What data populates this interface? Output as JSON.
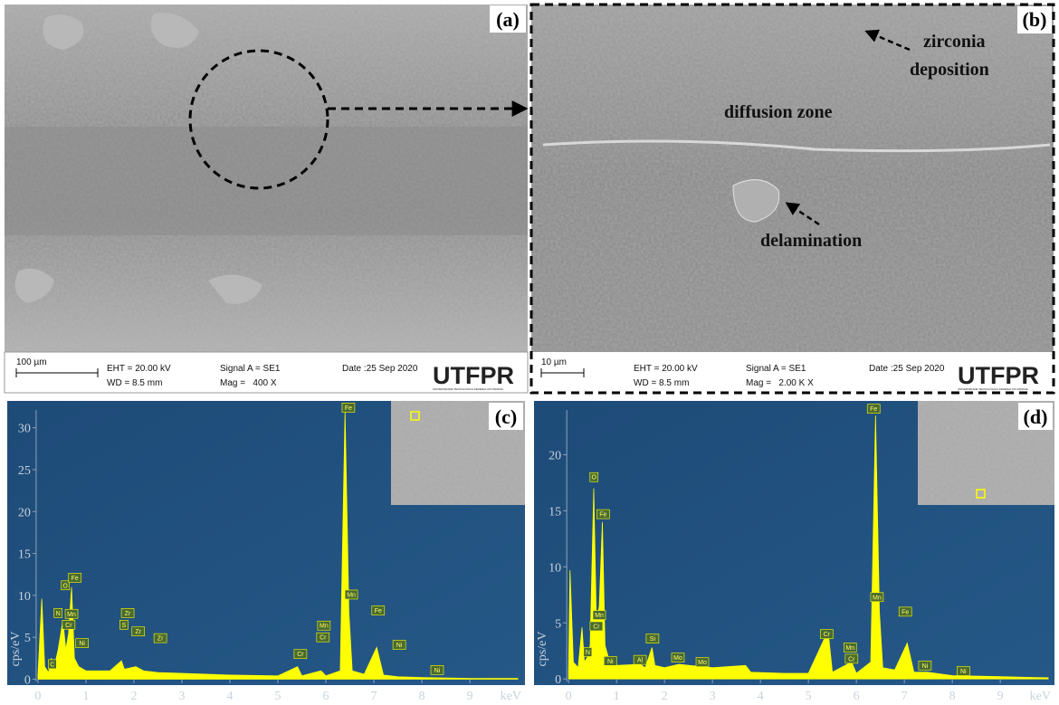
{
  "panels": [
    {
      "label": "(a)",
      "scale_bar": "100 µm",
      "eht": "EHT = 20.00 kV",
      "wd": "WD = 8.5 mm",
      "signal": "Signal A = SE1",
      "mag": "Mag =   400 X",
      "date": "Date :25 Sep 2020",
      "logo": "UTFPR",
      "logo_subtitle": "UNIVERSIDADE TECNOLÓGICA FEDERAL DO PARANÁ"
    },
    {
      "label": "(b)",
      "scale_bar": "10 µm",
      "eht": "EHT = 20.00 kV",
      "wd": "WD = 8.5 mm",
      "signal": "Signal A = SE1",
      "mag": "Mag =   2.00 K X",
      "date": "Date :25 Sep 2020",
      "logo": "UTFPR",
      "logo_subtitle": "UNIVERSIDADE TECNOLÓGICA FEDERAL DO PARANÁ",
      "annotations": [
        "zirconia",
        "deposition",
        "diffusion zone",
        "delamination"
      ]
    }
  ],
  "chart_data": [
    {
      "type": "area",
      "title": "(c)",
      "x_label": "keV",
      "y_label": "cps/eV",
      "color": "#ffff00",
      "x": [
        0.0,
        0.08,
        0.14,
        0.22,
        0.28,
        0.33,
        0.42,
        0.52,
        0.58,
        0.64,
        0.7,
        0.76,
        0.85,
        1.0,
        1.5,
        1.74,
        1.8,
        2.04,
        2.2,
        2.5,
        3.0,
        4.0,
        5.0,
        5.41,
        5.5,
        5.9,
        6.0,
        6.3,
        6.4,
        6.48,
        6.55,
        6.8,
        7.06,
        7.2,
        7.5,
        8.0,
        9.0,
        10.0
      ],
      "values": [
        0.5,
        9.6,
        1.5,
        0.8,
        2.5,
        1.2,
        3.5,
        7.0,
        3.5,
        5.5,
        11.0,
        2.5,
        1.5,
        1.0,
        1.0,
        2.2,
        1.2,
        1.5,
        1.0,
        0.8,
        0.7,
        0.5,
        0.4,
        1.5,
        0.4,
        1.0,
        0.4,
        1.0,
        32.0,
        8.0,
        1.0,
        0.6,
        3.8,
        0.5,
        0.3,
        0.2,
        0.1,
        0.1
      ],
      "xlim": [
        -0.64,
        10.15
      ],
      "ylim": [
        -0.7,
        33.2
      ],
      "xticks": [
        0,
        1,
        2,
        3,
        4,
        5,
        6,
        7,
        8,
        9
      ],
      "yticks": [
        0,
        5,
        10,
        15,
        20,
        25,
        30
      ],
      "annotations": [
        {
          "text": "C",
          "x": 0.3,
          "y": 1.8
        },
        {
          "text": "N",
          "x": 0.42,
          "y": 7.9
        },
        {
          "text": "O",
          "x": 0.57,
          "y": 11.2
        },
        {
          "text": "Cr",
          "x": 0.64,
          "y": 6.5
        },
        {
          "text": "Mn",
          "x": 0.7,
          "y": 7.8
        },
        {
          "text": "Fe",
          "x": 0.77,
          "y": 12.1
        },
        {
          "text": "Ni",
          "x": 0.92,
          "y": 4.3
        },
        {
          "text": "Zr",
          "x": 1.87,
          "y": 7.9
        },
        {
          "text": "S",
          "x": 1.79,
          "y": 6.5
        },
        {
          "text": "Zr",
          "x": 2.09,
          "y": 5.7
        },
        {
          "text": "Zr",
          "x": 2.55,
          "y": 4.9
        },
        {
          "text": "Cr",
          "x": 5.47,
          "y": 3.0
        },
        {
          "text": "Mn",
          "x": 5.96,
          "y": 6.4
        },
        {
          "text": "Cr",
          "x": 5.94,
          "y": 5.0
        },
        {
          "text": "Fe",
          "x": 6.47,
          "y": 32.4
        },
        {
          "text": "Mn",
          "x": 6.53,
          "y": 10.1
        },
        {
          "text": "Fe",
          "x": 7.09,
          "y": 8.2
        },
        {
          "text": "Ni",
          "x": 7.53,
          "y": 4.1
        },
        {
          "text": "Ni",
          "x": 8.32,
          "y": 1.1
        }
      ]
    },
    {
      "type": "area",
      "title": "(d)",
      "x_label": "keV",
      "y_label": "cps/eV",
      "color": "#ffff00",
      "x": [
        0.0,
        0.03,
        0.1,
        0.2,
        0.28,
        0.33,
        0.4,
        0.45,
        0.525,
        0.58,
        0.64,
        0.705,
        0.76,
        0.85,
        1.0,
        1.49,
        1.6,
        1.74,
        1.8,
        2.0,
        2.3,
        3.0,
        3.69,
        3.8,
        4.5,
        5.0,
        5.41,
        5.5,
        5.9,
        6.0,
        6.3,
        6.4,
        6.48,
        6.55,
        6.8,
        7.06,
        7.2,
        7.48,
        8.0,
        9.0,
        10.0
      ],
      "values": [
        0.5,
        9.7,
        1.5,
        1.0,
        4.6,
        1.5,
        2.0,
        3.0,
        17.0,
        5.0,
        6.5,
        14.0,
        3.0,
        1.6,
        1.2,
        1.3,
        1.0,
        2.8,
        1.2,
        1.0,
        1.3,
        1.0,
        1.2,
        0.6,
        0.5,
        0.5,
        4.3,
        0.6,
        1.5,
        0.5,
        1.5,
        23.5,
        6.0,
        1.0,
        0.8,
        3.2,
        0.6,
        0.6,
        0.3,
        0.2,
        0.1
      ],
      "xlim": [
        -0.72,
        10.13
      ],
      "ylim": [
        -0.55,
        24.8
      ],
      "xticks": [
        0,
        1,
        2,
        3,
        4,
        5,
        6,
        7,
        8,
        9
      ],
      "yticks": [
        0,
        5,
        10,
        15,
        20
      ],
      "annotations": [
        {
          "text": "O",
          "x": 0.53,
          "y": 18.0
        },
        {
          "text": "Fe",
          "x": 0.72,
          "y": 14.7
        },
        {
          "text": "Mn",
          "x": 0.64,
          "y": 5.7
        },
        {
          "text": "Cr",
          "x": 0.58,
          "y": 4.7
        },
        {
          "text": "N",
          "x": 0.4,
          "y": 2.4
        },
        {
          "text": "Ni",
          "x": 0.87,
          "y": 1.6
        },
        {
          "text": "Al",
          "x": 1.49,
          "y": 1.7
        },
        {
          "text": "Si",
          "x": 1.75,
          "y": 3.6
        },
        {
          "text": "Mo",
          "x": 2.28,
          "y": 1.9
        },
        {
          "text": "Mo",
          "x": 2.79,
          "y": 1.5
        },
        {
          "text": "Cr",
          "x": 5.38,
          "y": 4.0
        },
        {
          "text": "Mn",
          "x": 5.87,
          "y": 2.8
        },
        {
          "text": "Cr",
          "x": 5.9,
          "y": 1.8
        },
        {
          "text": "Fe",
          "x": 6.36,
          "y": 24.1
        },
        {
          "text": "Mn",
          "x": 6.43,
          "y": 7.3
        },
        {
          "text": "Fe",
          "x": 7.02,
          "y": 6.0
        },
        {
          "text": "Ni",
          "x": 7.43,
          "y": 1.2
        },
        {
          "text": "Ni",
          "x": 8.23,
          "y": 0.7
        }
      ]
    }
  ]
}
